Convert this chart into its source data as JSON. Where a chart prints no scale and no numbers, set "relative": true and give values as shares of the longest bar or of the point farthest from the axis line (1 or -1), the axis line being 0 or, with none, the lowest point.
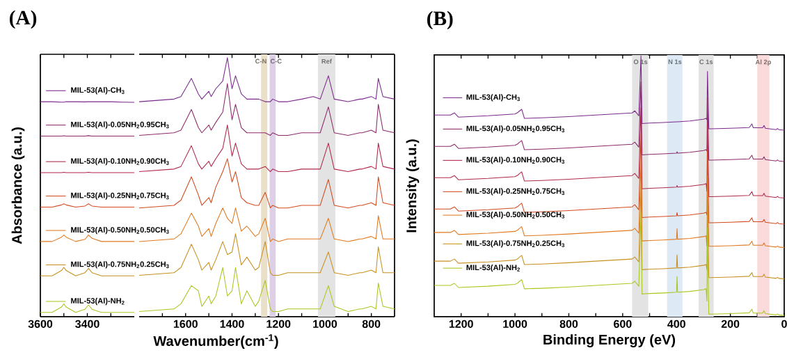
{
  "chart_data": [
    {
      "type": "line",
      "title": "(A)",
      "ylabel": "Absorbance (a.u.)",
      "relative": true,
      "legend": "top right",
      "xlim": [
        3600,
        3200
      ],
      "xticks": [
        3600,
        {
          "value": 3500,
          "label": null
        },
        3400,
        {
          "value": 3300,
          "label": null
        }
      ],
      "x": [
        3600,
        3550,
        3510,
        3500,
        3490,
        3450,
        3410,
        3395,
        3380,
        3340,
        3300,
        3250,
        3200
      ],
      "series": [
        {
          "name": "MIL-53(Al)-CH$_{3}$",
          "color": "#7b2a8c",
          "values": [
            1,
            1,
            0.998,
            0.998,
            1,
            1,
            0.999,
            1,
            1,
            1,
            1,
            0.998,
            0.997
          ]
        },
        {
          "name": "MIL-53(Al)-0.05NH$_{2}$0.95CH$_{3}$",
          "color": "#8c2a6a",
          "values": [
            0.84,
            0.84,
            0.84,
            0.842,
            0.84,
            0.84,
            0.84,
            0.842,
            0.84,
            0.84,
            0.84,
            0.84,
            0.84
          ]
        },
        {
          "name": "MIL-53(Al)-0.10NH$_{2}$0.90CH$_{3}$",
          "color": "#b0284a",
          "values": [
            0.67,
            0.67,
            0.67,
            0.672,
            0.67,
            0.67,
            0.67,
            0.672,
            0.67,
            0.67,
            0.67,
            0.67,
            0.67
          ]
        },
        {
          "name": "MIL-53(Al)-0.25NH$_{2}$0.75CH$_{3}$",
          "color": "#d24a1e",
          "values": [
            0.51,
            0.51,
            0.52,
            0.525,
            0.52,
            0.51,
            0.515,
            0.525,
            0.515,
            0.51,
            0.51,
            0.51,
            0.51
          ]
        },
        {
          "name": "MIL-53(Al)-0.50NH$_{2}$0.50CH$_{3}$",
          "color": "#e07a20",
          "values": [
            0.35,
            0.35,
            0.37,
            0.38,
            0.37,
            0.35,
            0.36,
            0.38,
            0.365,
            0.35,
            0.35,
            0.35,
            0.35
          ]
        },
        {
          "name": "MIL-53(Al)-0.75NH$_{2}$0.25CH$_{3}$",
          "color": "#c89020",
          "values": [
            0.19,
            0.19,
            0.215,
            0.23,
            0.215,
            0.19,
            0.205,
            0.225,
            0.205,
            0.19,
            0.19,
            0.19,
            0.19
          ]
        },
        {
          "name": "MIL-53(Al)-NH$_{2}$",
          "color": "#a8c820",
          "values": [
            0.02,
            0.02,
            0.045,
            0.06,
            0.045,
            0.02,
            0.035,
            0.055,
            0.035,
            0.02,
            0.02,
            0.02,
            0.02
          ]
        }
      ]
    },
    {
      "type": "line",
      "xlabel": "Wavenumber(cm$^{-1}$)",
      "relative": true,
      "xlim": [
        1800,
        700
      ],
      "xticks": [
        {
          "value": 1700,
          "label": null
        },
        1600,
        {
          "value": 1500,
          "label": null
        },
        1400,
        {
          "value": 1300,
          "label": null
        },
        1200,
        {
          "value": 1100,
          "label": null
        },
        1000,
        {
          "value": 900,
          "label": null
        },
        800
      ],
      "bands": [
        {
          "axis": "x",
          "from": 1275,
          "to": 1248,
          "label": "C-N",
          "color": "#eadfc8"
        },
        {
          "axis": "x",
          "from": 1238,
          "to": 1212,
          "label": "C-C",
          "color": "#dccfe6"
        },
        {
          "axis": "x",
          "from": 1030,
          "to": 955,
          "label": "Ref",
          "color": "#e3e3e3"
        }
      ],
      "x": [
        1800,
        1650,
        1620,
        1575,
        1545,
        1530,
        1500,
        1490,
        1470,
        1440,
        1420,
        1400,
        1385,
        1360,
        1336,
        1300,
        1285,
        1257,
        1235,
        1225,
        1200,
        1160,
        1100,
        1050,
        1020,
        985,
        960,
        900,
        850,
        840,
        800,
        780,
        770,
        750,
        700
      ],
      "series": [
        {
          "color": "#7b2a8c",
          "values": [
            0.83,
            0.84,
            0.85,
            0.92,
            0.86,
            0.84,
            0.87,
            0.85,
            0.88,
            0.91,
            1.0,
            0.88,
            0.93,
            0.86,
            0.84,
            0.84,
            0.84,
            0.83,
            0.83,
            0.84,
            0.83,
            0.83,
            0.84,
            0.85,
            0.84,
            0.93,
            0.84,
            0.83,
            0.84,
            0.84,
            0.85,
            0.84,
            0.92,
            0.85,
            0.84
          ]
        },
        {
          "color": "#8c2a6a",
          "values": [
            0.7,
            0.71,
            0.72,
            0.8,
            0.73,
            0.71,
            0.74,
            0.72,
            0.75,
            0.79,
            0.9,
            0.76,
            0.82,
            0.73,
            0.71,
            0.71,
            0.71,
            0.71,
            0.7,
            0.71,
            0.7,
            0.7,
            0.71,
            0.71,
            0.71,
            0.81,
            0.71,
            0.7,
            0.71,
            0.71,
            0.72,
            0.71,
            0.82,
            0.72,
            0.71
          ]
        },
        {
          "color": "#b0284a",
          "values": [
            0.56,
            0.57,
            0.58,
            0.66,
            0.59,
            0.57,
            0.6,
            0.58,
            0.61,
            0.65,
            0.74,
            0.62,
            0.67,
            0.59,
            0.57,
            0.57,
            0.57,
            0.58,
            0.56,
            0.57,
            0.56,
            0.56,
            0.57,
            0.57,
            0.57,
            0.67,
            0.57,
            0.56,
            0.57,
            0.57,
            0.58,
            0.57,
            0.67,
            0.58,
            0.57
          ]
        },
        {
          "color": "#d24a1e",
          "values": [
            0.42,
            0.43,
            0.45,
            0.54,
            0.47,
            0.43,
            0.46,
            0.44,
            0.5,
            0.56,
            0.61,
            0.52,
            0.56,
            0.46,
            0.44,
            0.43,
            0.43,
            0.48,
            0.42,
            0.43,
            0.42,
            0.42,
            0.43,
            0.43,
            0.43,
            0.53,
            0.43,
            0.42,
            0.43,
            0.43,
            0.44,
            0.43,
            0.54,
            0.44,
            0.43
          ]
        },
        {
          "color": "#e07a20",
          "values": [
            0.29,
            0.3,
            0.32,
            0.4,
            0.35,
            0.31,
            0.34,
            0.31,
            0.36,
            0.42,
            0.38,
            0.36,
            0.42,
            0.33,
            0.35,
            0.31,
            0.32,
            0.38,
            0.29,
            0.3,
            0.29,
            0.3,
            0.3,
            0.3,
            0.3,
            0.38,
            0.3,
            0.29,
            0.3,
            0.3,
            0.31,
            0.3,
            0.39,
            0.3,
            0.3
          ]
        },
        {
          "color": "#c89020",
          "values": [
            0.16,
            0.17,
            0.19,
            0.28,
            0.22,
            0.18,
            0.21,
            0.18,
            0.22,
            0.29,
            0.24,
            0.25,
            0.32,
            0.2,
            0.23,
            0.18,
            0.19,
            0.29,
            0.17,
            0.16,
            0.16,
            0.17,
            0.17,
            0.17,
            0.17,
            0.25,
            0.17,
            0.16,
            0.17,
            0.17,
            0.18,
            0.17,
            0.27,
            0.17,
            0.17
          ]
        },
        {
          "color": "#a8c820",
          "values": [
            0.02,
            0.03,
            0.05,
            0.12,
            0.1,
            0.04,
            0.08,
            0.05,
            0.08,
            0.19,
            0.08,
            0.1,
            0.19,
            0.05,
            0.1,
            0.04,
            0.06,
            0.14,
            0.03,
            0.02,
            0.02,
            0.03,
            0.03,
            0.03,
            0.03,
            0.12,
            0.04,
            0.02,
            0.03,
            0.03,
            0.04,
            0.03,
            0.13,
            0.04,
            0.03
          ]
        }
      ]
    },
    {
      "type": "line",
      "title": "(B)",
      "xlabel": "Binding Energy (eV)",
      "ylabel": "Intensity (a.u.)",
      "relative": true,
      "legend": "top left",
      "xlim": [
        1300,
        0
      ],
      "xticks": [
        1200,
        {
          "value": 1100,
          "label": null
        },
        1000,
        {
          "value": 900,
          "label": null
        },
        800,
        {
          "value": 700,
          "label": null
        },
        600,
        {
          "value": 500,
          "label": null
        },
        400,
        {
          "value": 300,
          "label": null
        },
        200,
        {
          "value": 100,
          "label": null
        },
        0
      ],
      "bands": [
        {
          "axis": "x",
          "from": 565,
          "to": 505,
          "label": "O 1s",
          "color": "#e3e3e3"
        },
        {
          "axis": "x",
          "from": 435,
          "to": 378,
          "label": "N 1s",
          "color": "#dde9f5"
        },
        {
          "axis": "x",
          "from": 318,
          "to": 262,
          "label": "C 1s",
          "color": "#e3e3e3"
        },
        {
          "axis": "x",
          "from": 100,
          "to": 55,
          "label": "Al 2p",
          "color": "#fadada"
        }
      ],
      "x": [
        1300,
        1240,
        1225,
        1210,
        1100,
        1000,
        990,
        985,
        975,
        965,
        900,
        800,
        700,
        600,
        565,
        555,
        540,
        532,
        528,
        520,
        500,
        450,
        400,
        398,
        396,
        350,
        300,
        290,
        287,
        285,
        280,
        270,
        200,
        130,
        120,
        115,
        80,
        75,
        70,
        30,
        25,
        20,
        0
      ],
      "series": [
        {
          "name": "MIL-53(Al)-CH$_{3}$",
          "color": "#7b2a8c",
          "values": [
            0.773,
            0.773,
            0.781,
            0.765,
            0.77,
            0.777,
            0.782,
            0.787,
            0.795,
            0.76,
            0.762,
            0.767,
            0.773,
            0.779,
            0.781,
            0.789,
            0.77,
            1.0,
            0.74,
            0.741,
            0.742,
            0.744,
            0.747,
            0.747,
            0.747,
            0.75,
            0.757,
            0.76,
            0.755,
            0.94,
            0.72,
            0.72,
            0.722,
            0.725,
            0.739,
            0.724,
            0.724,
            0.733,
            0.722,
            0.717,
            0.721,
            0.717,
            0.715
          ]
        },
        {
          "name": "MIL-53(Al)-0.05NH$_{2}$0.95CH$_{3}$",
          "color": "#8c2a6a",
          "values": [
            0.653,
            0.653,
            0.661,
            0.645,
            0.65,
            0.657,
            0.662,
            0.667,
            0.675,
            0.64,
            0.642,
            0.647,
            0.653,
            0.659,
            0.661,
            0.669,
            0.65,
            0.9,
            0.62,
            0.621,
            0.622,
            0.624,
            0.627,
            0.632,
            0.627,
            0.63,
            0.637,
            0.64,
            0.635,
            0.84,
            0.6,
            0.6,
            0.602,
            0.605,
            0.619,
            0.604,
            0.604,
            0.613,
            0.602,
            0.597,
            0.601,
            0.597,
            0.595
          ]
        },
        {
          "name": "MIL-53(Al)-0.10NH$_{2}$0.90CH$_{3}$",
          "color": "#b0284a",
          "values": [
            0.533,
            0.533,
            0.541,
            0.525,
            0.53,
            0.537,
            0.542,
            0.547,
            0.555,
            0.52,
            0.522,
            0.527,
            0.533,
            0.539,
            0.541,
            0.549,
            0.53,
            0.8,
            0.49,
            0.491,
            0.492,
            0.494,
            0.497,
            0.503,
            0.497,
            0.5,
            0.507,
            0.51,
            0.48,
            0.74,
            0.46,
            0.46,
            0.462,
            0.465,
            0.479,
            0.464,
            0.464,
            0.473,
            0.462,
            0.457,
            0.461,
            0.457,
            0.455
          ]
        },
        {
          "name": "MIL-53(Al)-0.25NH$_{2}$0.75CH$_{3}$",
          "color": "#d24a1e",
          "values": [
            0.413,
            0.413,
            0.421,
            0.405,
            0.41,
            0.417,
            0.422,
            0.427,
            0.435,
            0.4,
            0.402,
            0.407,
            0.413,
            0.419,
            0.421,
            0.429,
            0.41,
            0.7,
            0.38,
            0.381,
            0.382,
            0.384,
            0.387,
            0.399,
            0.387,
            0.39,
            0.397,
            0.4,
            0.39,
            0.64,
            0.36,
            0.36,
            0.362,
            0.365,
            0.379,
            0.364,
            0.364,
            0.373,
            0.362,
            0.357,
            0.361,
            0.357,
            0.355
          ]
        },
        {
          "name": "MIL-53(Al)-0.50NH$_{2}$0.50CH$_{3}$",
          "color": "#e07a20",
          "values": [
            0.323,
            0.323,
            0.331,
            0.315,
            0.32,
            0.327,
            0.332,
            0.337,
            0.345,
            0.31,
            0.312,
            0.317,
            0.323,
            0.329,
            0.331,
            0.339,
            0.32,
            0.6,
            0.29,
            0.291,
            0.292,
            0.294,
            0.297,
            0.337,
            0.297,
            0.3,
            0.307,
            0.31,
            0.27,
            0.54,
            0.27,
            0.27,
            0.272,
            0.275,
            0.289,
            0.274,
            0.274,
            0.283,
            0.272,
            0.267,
            0.271,
            0.267,
            0.265
          ]
        },
        {
          "name": "MIL-53(Al)-0.75NH$_{2}$0.25CH$_{3}$",
          "color": "#c89020",
          "values": [
            0.213,
            0.213,
            0.221,
            0.205,
            0.21,
            0.217,
            0.222,
            0.227,
            0.235,
            0.2,
            0.202,
            0.207,
            0.213,
            0.219,
            0.221,
            0.229,
            0.21,
            0.5,
            0.18,
            0.181,
            0.182,
            0.184,
            0.187,
            0.237,
            0.187,
            0.19,
            0.197,
            0.2,
            0.18,
            0.44,
            0.15,
            0.15,
            0.152,
            0.155,
            0.169,
            0.154,
            0.154,
            0.163,
            0.152,
            0.147,
            0.151,
            0.147,
            0.145
          ]
        },
        {
          "name": "MIL-53(Al)-NH$_{2}$",
          "color": "#a8c820",
          "values": [
            0.12,
            0.12,
            0.128,
            0.112,
            0.117,
            0.124,
            0.129,
            0.134,
            0.142,
            0.107,
            0.109,
            0.114,
            0.12,
            0.126,
            0.128,
            0.136,
            0.117,
            0.4,
            0.087,
            0.088,
            0.089,
            0.091,
            0.094,
            0.154,
            0.094,
            0.097,
            0.104,
            0.107,
            0.06,
            0.34,
            0.01,
            0.01,
            0.012,
            0.015,
            0.029,
            0.014,
            0.014,
            0.023,
            0.012,
            0.007,
            0.011,
            0.007,
            0.005
          ]
        }
      ]
    }
  ]
}
